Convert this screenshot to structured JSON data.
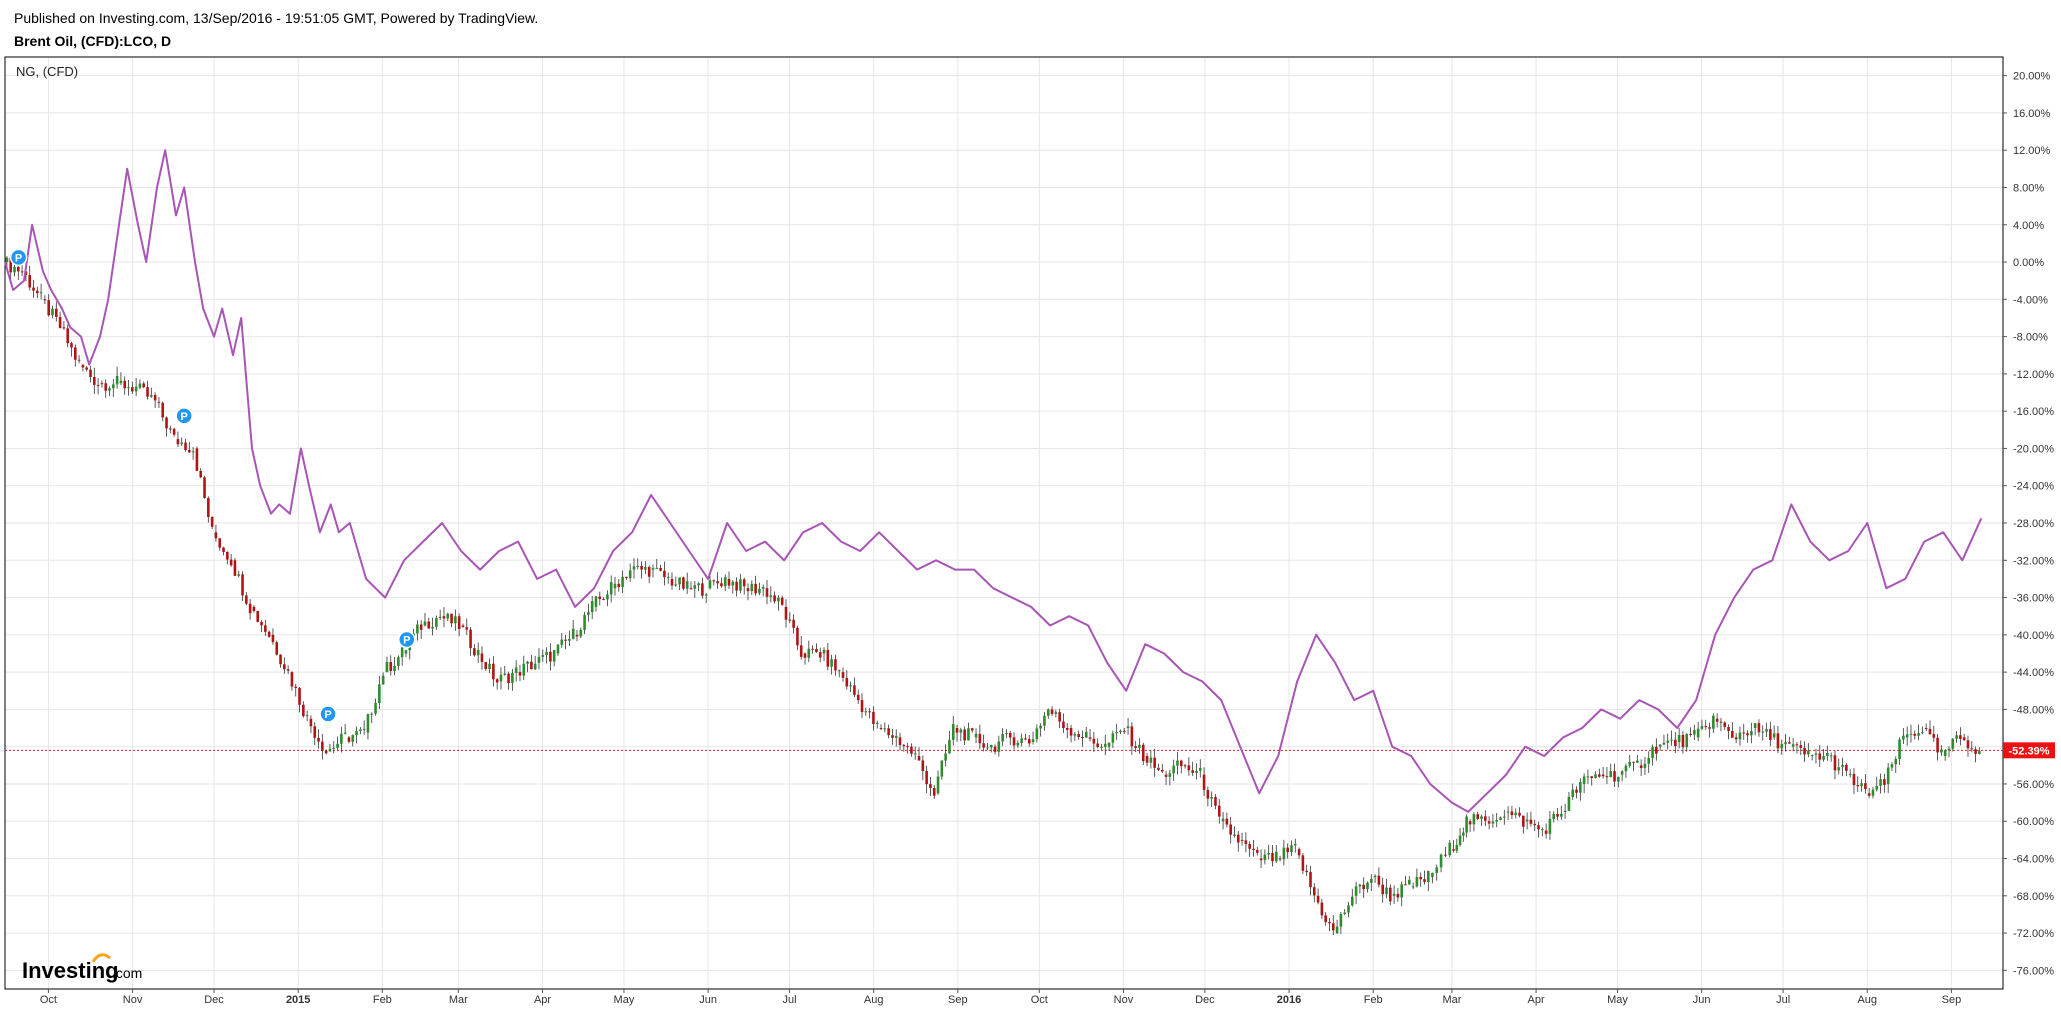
{
  "header": {
    "published": "Published on Investing.com, 13/Sep/2016 - 19:51:05 GMT, Powered by TradingView.",
    "symbol": "Brent Oil, (CFD):LCO, D"
  },
  "legend": {
    "comparison": "NG,  (CFD)"
  },
  "logo": {
    "main": "Investing",
    "suffix": ".com"
  },
  "colors": {
    "ng_line": "#a855b5",
    "candle_up": "#2e8b2e",
    "candle_down": "#b01515",
    "last_price_bg": "#ee1111",
    "marker": "#2196f3"
  },
  "chart_data": {
    "type": "line",
    "y_unit": "percent",
    "ylim": [
      -78,
      22
    ],
    "y_ticks": [
      "20.00%",
      "16.00%",
      "12.00%",
      "8.00%",
      "4.00%",
      "0.00%",
      "-4.00%",
      "-8.00%",
      "-12.00%",
      "-16.00%",
      "-20.00%",
      "-24.00%",
      "-28.00%",
      "-32.00%",
      "-36.00%",
      "-40.00%",
      "-44.00%",
      "-48.00%",
      "-52.00%",
      "-56.00%",
      "-60.00%",
      "-64.00%",
      "-68.00%",
      "-72.00%",
      "-76.00%"
    ],
    "x_ticks": [
      "Oct",
      "Nov",
      "Dec",
      "2015",
      "Feb",
      "Mar",
      "Apr",
      "May",
      "Jun",
      "Jul",
      "Aug",
      "Sep",
      "Oct",
      "Nov",
      "Dec",
      "2016",
      "Feb",
      "Mar",
      "Apr",
      "May",
      "Jun",
      "Jul",
      "Aug",
      "Sep"
    ],
    "x_start": "2014-09-15",
    "x_end": "2016-09-20",
    "grid": true,
    "last_value_label": "-52.39%",
    "last_value": -52.39,
    "markers": [
      {
        "label": "P",
        "date": "2014-09-20",
        "value": 0.5
      },
      {
        "label": "P",
        "date": "2014-11-20",
        "value": -16.5
      },
      {
        "label": "P",
        "date": "2015-01-12",
        "value": -48.5
      },
      {
        "label": "P",
        "date": "2015-02-10",
        "value": -40.5
      }
    ],
    "series": [
      {
        "name": "Brent Oil, (CFD):LCO, D",
        "style": "candlestick",
        "points": [
          [
            "2014-09-15",
            0
          ],
          [
            "2014-09-22",
            -1
          ],
          [
            "2014-09-29",
            -4
          ],
          [
            "2014-10-06",
            -7
          ],
          [
            "2014-10-13",
            -11
          ],
          [
            "2014-10-20",
            -13
          ],
          [
            "2014-10-27",
            -13
          ],
          [
            "2014-11-03",
            -13.5
          ],
          [
            "2014-11-10",
            -15
          ],
          [
            "2014-11-17",
            -19
          ],
          [
            "2014-11-24",
            -20
          ],
          [
            "2014-12-01",
            -29
          ],
          [
            "2014-12-08",
            -32
          ],
          [
            "2014-12-15",
            -37
          ],
          [
            "2014-12-22",
            -40
          ],
          [
            "2014-12-29",
            -44
          ],
          [
            "2015-01-05",
            -49
          ],
          [
            "2015-01-12",
            -52.5
          ],
          [
            "2015-01-19",
            -51
          ],
          [
            "2015-01-26",
            -50.5
          ],
          [
            "2015-02-02",
            -44
          ],
          [
            "2015-02-09",
            -42
          ],
          [
            "2015-02-16",
            -39
          ],
          [
            "2015-02-23",
            -38
          ],
          [
            "2015-03-02",
            -39
          ],
          [
            "2015-03-09",
            -42
          ],
          [
            "2015-03-16",
            -45
          ],
          [
            "2015-03-23",
            -44
          ],
          [
            "2015-03-30",
            -43
          ],
          [
            "2015-04-06",
            -42
          ],
          [
            "2015-04-13",
            -40
          ],
          [
            "2015-04-20",
            -37
          ],
          [
            "2015-04-27",
            -35
          ],
          [
            "2015-05-04",
            -33
          ],
          [
            "2015-05-11",
            -33
          ],
          [
            "2015-05-18",
            -34
          ],
          [
            "2015-05-25",
            -35
          ],
          [
            "2015-06-01",
            -35
          ],
          [
            "2015-06-08",
            -34
          ],
          [
            "2015-06-15",
            -35
          ],
          [
            "2015-06-22",
            -35
          ],
          [
            "2015-06-29",
            -37
          ],
          [
            "2015-07-06",
            -42
          ],
          [
            "2015-07-13",
            -42
          ],
          [
            "2015-07-20",
            -44
          ],
          [
            "2015-07-27",
            -47
          ],
          [
            "2015-08-03",
            -50
          ],
          [
            "2015-08-10",
            -51
          ],
          [
            "2015-08-17",
            -53
          ],
          [
            "2015-08-24",
            -57
          ],
          [
            "2015-08-31",
            -50
          ],
          [
            "2015-09-07",
            -51
          ],
          [
            "2015-09-14",
            -52
          ],
          [
            "2015-09-21",
            -51
          ],
          [
            "2015-09-28",
            -51.5
          ],
          [
            "2015-10-05",
            -48
          ],
          [
            "2015-10-12",
            -50
          ],
          [
            "2015-10-19",
            -51
          ],
          [
            "2015-10-26",
            -52
          ],
          [
            "2015-11-02",
            -50
          ],
          [
            "2015-11-09",
            -53
          ],
          [
            "2015-11-16",
            -55
          ],
          [
            "2015-11-23",
            -54
          ],
          [
            "2015-11-30",
            -55
          ],
          [
            "2015-12-07",
            -60
          ],
          [
            "2015-12-14",
            -62
          ],
          [
            "2015-12-21",
            -64
          ],
          [
            "2015-12-28",
            -64
          ],
          [
            "2016-01-04",
            -63
          ],
          [
            "2016-01-11",
            -68
          ],
          [
            "2016-01-18",
            -72
          ],
          [
            "2016-01-25",
            -68
          ],
          [
            "2016-02-01",
            -66
          ],
          [
            "2016-02-08",
            -68
          ],
          [
            "2016-02-15",
            -67
          ],
          [
            "2016-02-22",
            -66
          ],
          [
            "2016-03-01",
            -63
          ],
          [
            "2016-03-07",
            -60
          ],
          [
            "2016-03-14",
            -60
          ],
          [
            "2016-03-21",
            -59
          ],
          [
            "2016-03-28",
            -60
          ],
          [
            "2016-04-04",
            -61
          ],
          [
            "2016-04-11",
            -59
          ],
          [
            "2016-04-18",
            -56
          ],
          [
            "2016-04-25",
            -55
          ],
          [
            "2016-05-02",
            -55
          ],
          [
            "2016-05-09",
            -54
          ],
          [
            "2016-05-16",
            -52
          ],
          [
            "2016-05-23",
            -51.5
          ],
          [
            "2016-05-30",
            -51
          ],
          [
            "2016-06-06",
            -49
          ],
          [
            "2016-06-13",
            -51
          ],
          [
            "2016-06-20",
            -50
          ],
          [
            "2016-06-27",
            -51
          ],
          [
            "2016-07-04",
            -52
          ],
          [
            "2016-07-11",
            -53
          ],
          [
            "2016-07-18",
            -53
          ],
          [
            "2016-07-25",
            -55
          ],
          [
            "2016-08-01",
            -57
          ],
          [
            "2016-08-08",
            -56
          ],
          [
            "2016-08-15",
            -51
          ],
          [
            "2016-08-22",
            -50
          ],
          [
            "2016-08-29",
            -53
          ],
          [
            "2016-09-05",
            -51
          ],
          [
            "2016-09-12",
            -52.4
          ]
        ]
      },
      {
        "name": "NG,  (CFD)",
        "style": "line",
        "points": [
          [
            "2014-09-15",
            0
          ],
          [
            "2014-09-18",
            -3
          ],
          [
            "2014-09-22",
            -2
          ],
          [
            "2014-09-25",
            4
          ],
          [
            "2014-09-29",
            -1
          ],
          [
            "2014-10-02",
            -3
          ],
          [
            "2014-10-06",
            -5
          ],
          [
            "2014-10-09",
            -7
          ],
          [
            "2014-10-13",
            -8
          ],
          [
            "2014-10-16",
            -11
          ],
          [
            "2014-10-20",
            -8
          ],
          [
            "2014-10-23",
            -4
          ],
          [
            "2014-10-27",
            4
          ],
          [
            "2014-10-30",
            10
          ],
          [
            "2014-11-03",
            4
          ],
          [
            "2014-11-06",
            0
          ],
          [
            "2014-11-10",
            8
          ],
          [
            "2014-11-13",
            12
          ],
          [
            "2014-11-17",
            5
          ],
          [
            "2014-11-20",
            8
          ],
          [
            "2014-11-24",
            0
          ],
          [
            "2014-11-27",
            -5
          ],
          [
            "2014-12-01",
            -8
          ],
          [
            "2014-12-04",
            -5
          ],
          [
            "2014-12-08",
            -10
          ],
          [
            "2014-12-11",
            -6
          ],
          [
            "2014-12-15",
            -20
          ],
          [
            "2014-12-18",
            -24
          ],
          [
            "2014-12-22",
            -27
          ],
          [
            "2014-12-25",
            -26
          ],
          [
            "2014-12-29",
            -27
          ],
          [
            "2015-01-02",
            -20
          ],
          [
            "2015-01-05",
            -24
          ],
          [
            "2015-01-09",
            -29
          ],
          [
            "2015-01-13",
            -26
          ],
          [
            "2015-01-16",
            -29
          ],
          [
            "2015-01-20",
            -28
          ],
          [
            "2015-01-26",
            -34
          ],
          [
            "2015-02-02",
            -36
          ],
          [
            "2015-02-09",
            -32
          ],
          [
            "2015-02-16",
            -30
          ],
          [
            "2015-02-23",
            -28
          ],
          [
            "2015-03-02",
            -31
          ],
          [
            "2015-03-09",
            -33
          ],
          [
            "2015-03-16",
            -31
          ],
          [
            "2015-03-23",
            -30
          ],
          [
            "2015-03-30",
            -34
          ],
          [
            "2015-04-06",
            -33
          ],
          [
            "2015-04-13",
            -37
          ],
          [
            "2015-04-20",
            -35
          ],
          [
            "2015-04-27",
            -31
          ],
          [
            "2015-05-04",
            -29
          ],
          [
            "2015-05-11",
            -25
          ],
          [
            "2015-05-18",
            -28
          ],
          [
            "2015-05-25",
            -31
          ],
          [
            "2015-06-01",
            -34
          ],
          [
            "2015-06-08",
            -28
          ],
          [
            "2015-06-15",
            -31
          ],
          [
            "2015-06-22",
            -30
          ],
          [
            "2015-06-29",
            -32
          ],
          [
            "2015-07-06",
            -29
          ],
          [
            "2015-07-13",
            -28
          ],
          [
            "2015-07-20",
            -30
          ],
          [
            "2015-07-27",
            -31
          ],
          [
            "2015-08-03",
            -29
          ],
          [
            "2015-08-10",
            -31
          ],
          [
            "2015-08-17",
            -33
          ],
          [
            "2015-08-24",
            -32
          ],
          [
            "2015-08-31",
            -33
          ],
          [
            "2015-09-07",
            -33
          ],
          [
            "2015-09-14",
            -35
          ],
          [
            "2015-09-21",
            -36
          ],
          [
            "2015-09-28",
            -37
          ],
          [
            "2015-10-05",
            -39
          ],
          [
            "2015-10-12",
            -38
          ],
          [
            "2015-10-19",
            -39
          ],
          [
            "2015-10-26",
            -43
          ],
          [
            "2015-11-02",
            -46
          ],
          [
            "2015-11-09",
            -41
          ],
          [
            "2015-11-16",
            -42
          ],
          [
            "2015-11-23",
            -44
          ],
          [
            "2015-11-30",
            -45
          ],
          [
            "2015-12-07",
            -47
          ],
          [
            "2015-12-14",
            -52
          ],
          [
            "2015-12-21",
            -57
          ],
          [
            "2015-12-28",
            -53
          ],
          [
            "2016-01-04",
            -45
          ],
          [
            "2016-01-11",
            -40
          ],
          [
            "2016-01-18",
            -43
          ],
          [
            "2016-01-25",
            -47
          ],
          [
            "2016-02-01",
            -46
          ],
          [
            "2016-02-08",
            -52
          ],
          [
            "2016-02-15",
            -53
          ],
          [
            "2016-02-22",
            -56
          ],
          [
            "2016-03-01",
            -58
          ],
          [
            "2016-03-07",
            -59
          ],
          [
            "2016-03-14",
            -57
          ],
          [
            "2016-03-21",
            -55
          ],
          [
            "2016-03-28",
            -52
          ],
          [
            "2016-04-04",
            -53
          ],
          [
            "2016-04-11",
            -51
          ],
          [
            "2016-04-18",
            -50
          ],
          [
            "2016-04-25",
            -48
          ],
          [
            "2016-05-02",
            -49
          ],
          [
            "2016-05-09",
            -47
          ],
          [
            "2016-05-16",
            -48
          ],
          [
            "2016-05-23",
            -50
          ],
          [
            "2016-05-30",
            -47
          ],
          [
            "2016-06-06",
            -40
          ],
          [
            "2016-06-13",
            -36
          ],
          [
            "2016-06-20",
            -33
          ],
          [
            "2016-06-27",
            -32
          ],
          [
            "2016-07-04",
            -26
          ],
          [
            "2016-07-11",
            -30
          ],
          [
            "2016-07-18",
            -32
          ],
          [
            "2016-07-25",
            -31
          ],
          [
            "2016-08-01",
            -28
          ],
          [
            "2016-08-08",
            -35
          ],
          [
            "2016-08-15",
            -34
          ],
          [
            "2016-08-22",
            -30
          ],
          [
            "2016-08-29",
            -29
          ],
          [
            "2016-09-05",
            -32
          ],
          [
            "2016-09-12",
            -27.5
          ]
        ]
      }
    ]
  }
}
